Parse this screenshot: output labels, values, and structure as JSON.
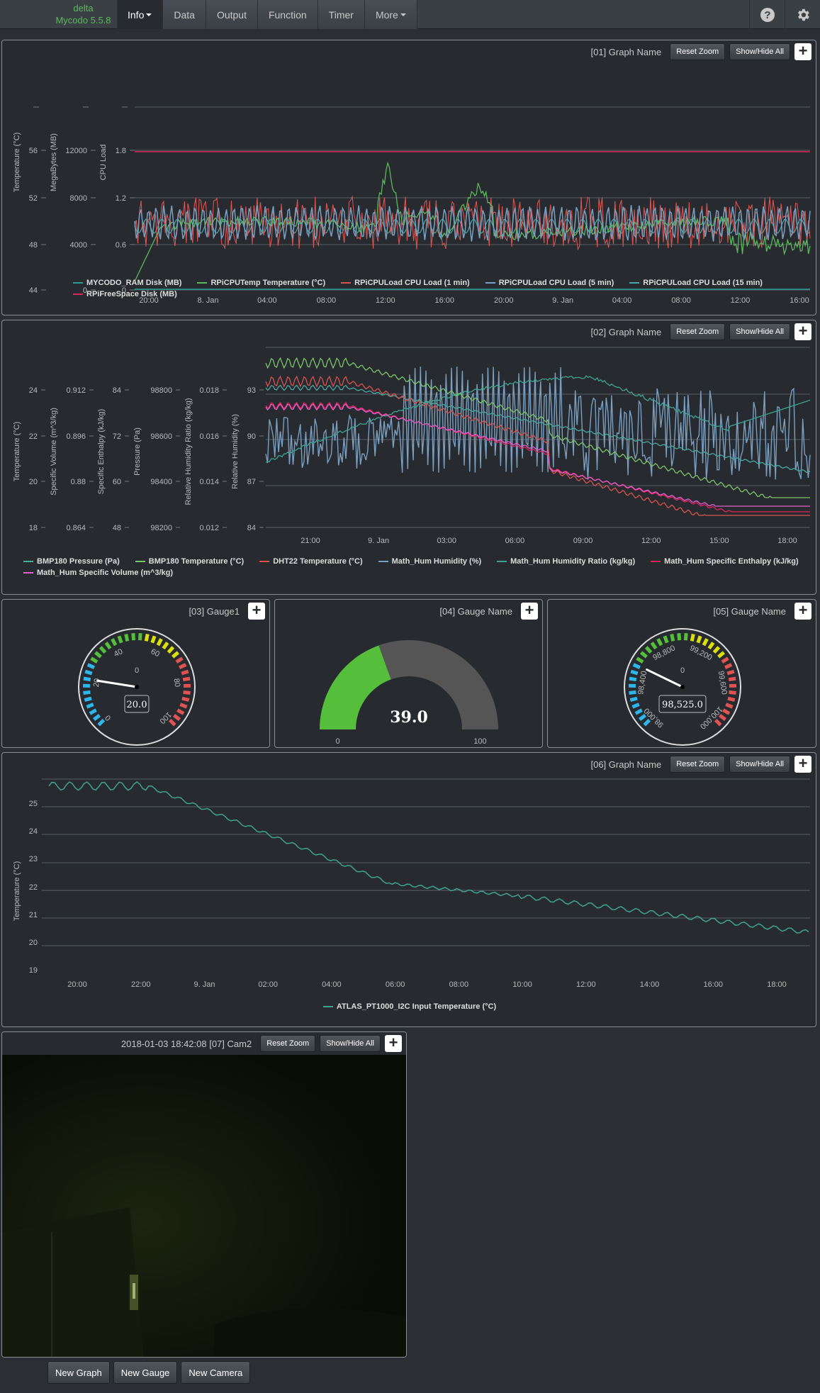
{
  "nav": {
    "brand_line1": "delta",
    "brand_line2": "Mycodo 5.5.8",
    "items": [
      {
        "label": "Info",
        "dropdown": true,
        "active": true
      },
      {
        "label": "Data"
      },
      {
        "label": "Output"
      },
      {
        "label": "Function"
      },
      {
        "label": "Timer"
      },
      {
        "label": "More",
        "dropdown": true
      }
    ],
    "right_icons": [
      "help-icon",
      "gear-icon"
    ]
  },
  "buttons": {
    "reset_zoom": "Reset Zoom",
    "show_hide_all": "Show/Hide All",
    "plus": "+"
  },
  "graph1": {
    "title": "[01] Graph Name",
    "axis_labels": [
      "Temperature (°C)",
      "MegaBytes (MB)",
      "CPU Load"
    ],
    "y_ticks": [
      [
        "56",
        "52",
        "48",
        "44"
      ],
      [
        "12000",
        "8000",
        "4000",
        "0"
      ],
      [
        "1.8",
        "1.2",
        "0.6",
        "0"
      ]
    ],
    "x_ticks": [
      "20:00",
      "8. Jan",
      "04:00",
      "08:00",
      "12:00",
      "16:00",
      "20:00",
      "9. Jan",
      "04:00",
      "08:00",
      "12:00",
      "16:00"
    ],
    "legend": [
      {
        "name": "MYCODO_RAM Disk (MB)",
        "color": "#2a9d8f"
      },
      {
        "name": "RPiCPUTemp Temperature (°C)",
        "color": "#5cb85c"
      },
      {
        "name": "RPiCPULoad CPU Load (1 min)",
        "color": "#d9534f"
      },
      {
        "name": "RPiCPULoad CPU Load (5 min)",
        "color": "#7a9fc0"
      },
      {
        "name": "RPiCPULoad CPU Load (15 min)",
        "color": "#4aa8a0"
      },
      {
        "name": "RPiFreeSpace Disk (MB)",
        "color": "#e0245e"
      }
    ]
  },
  "graph2": {
    "title": "[02] Graph Name",
    "axis_labels": [
      "Temperature (°C)",
      "Specific Volume (m^3/kg)",
      "Specific Enthalpy (kJ/kg)",
      "Pressure (Pa)",
      "Relative Humidity Ratio (kg/kg)",
      "Relative Humidity (%)"
    ],
    "y_ticks": [
      [
        "24",
        "22",
        "20",
        "18"
      ],
      [
        "0.912",
        "0.896",
        "0.88",
        "0.864"
      ],
      [
        "84",
        "72",
        "60",
        "48"
      ],
      [
        "98800",
        "98600",
        "98400",
        "98200"
      ],
      [
        "0.018",
        "0.016",
        "0.014",
        "0.012"
      ],
      [
        "93",
        "90",
        "87",
        "84"
      ]
    ],
    "x_ticks": [
      "21:00",
      "9. Jan",
      "03:00",
      "06:00",
      "09:00",
      "12:00",
      "15:00",
      "18:00"
    ],
    "legend": [
      {
        "name": "BMP180 Pressure (Pa)",
        "color": "#4aa8a0"
      },
      {
        "name": "BMP180 Temperature (°C)",
        "color": "#7cc46a"
      },
      {
        "name": "DHT22 Temperature (°C)",
        "color": "#d9534f"
      },
      {
        "name": "Math_Hum Humidity (%)",
        "color": "#7a9fc0"
      },
      {
        "name": "Math_Hum Humidity Ratio (kg/kg)",
        "color": "#3fa38f"
      },
      {
        "name": "Math_Hum Specific Enthalpy (kJ/kg)",
        "color": "#e0245e"
      },
      {
        "name": "Math_Hum Specific Volume (m^3/kg)",
        "color": "#e05fc8"
      }
    ]
  },
  "gauge1": {
    "title": "[03] Gauge1",
    "value": 20.0,
    "value_text": "20.0",
    "center_text": "0",
    "ticks": [
      "0",
      "20",
      "40",
      "60",
      "80",
      "100"
    ],
    "min": 0,
    "max": 100
  },
  "gauge2": {
    "title": "[04] Gauge Name",
    "value": 39.0,
    "value_text": "39.0",
    "min_text": "0",
    "max_text": "100",
    "min": 0,
    "max": 100,
    "fill_color": "#55bf3b",
    "track_color": "#555555"
  },
  "gauge3": {
    "title": "[05] Gauge Name",
    "value": 98525.0,
    "value_text": "98,525.0",
    "center_text": "0",
    "ticks": [
      "98,000",
      "98,400",
      "98,800",
      "99,200",
      "99,600",
      "100,000"
    ],
    "min": 98000,
    "max": 100000
  },
  "graph6": {
    "title": "[06] Graph Name",
    "axis_label": "Temperature (°C)",
    "y_ticks": [
      "25",
      "24",
      "23",
      "22",
      "21",
      "20",
      "19"
    ],
    "x_ticks": [
      "20:00",
      "22:00",
      "9. Jan",
      "02:00",
      "04:00",
      "06:00",
      "08:00",
      "10:00",
      "12:00",
      "14:00",
      "16:00",
      "18:00"
    ],
    "legend": [
      {
        "name": "ATLAS_PT1000_I2C Input Temperature (°C)",
        "color": "#3fa38f"
      }
    ]
  },
  "camera": {
    "title": "2018-01-03 18:42:08 [07] Cam2"
  },
  "bottom": {
    "new_graph": "New Graph",
    "new_gauge": "New Gauge",
    "new_camera": "New Camera"
  }
}
